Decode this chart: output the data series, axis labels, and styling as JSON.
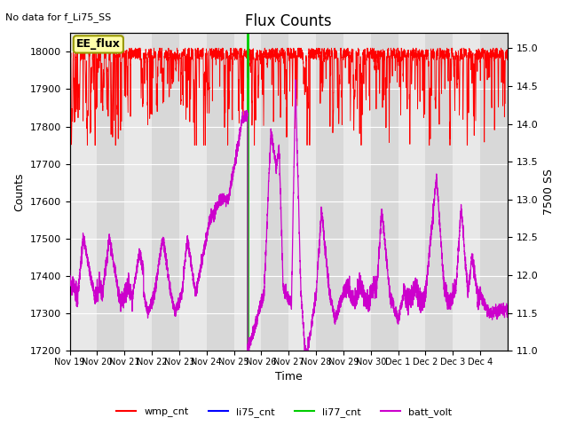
{
  "title": "Flux Counts",
  "no_data_text": "No data for f_Li75_SS",
  "xlabel": "Time",
  "ylabel_left": "Counts",
  "ylabel_right": "7500 SS",
  "annotation_box": "EE_flux",
  "ylim_left": [
    17200,
    18050
  ],
  "ylim_right": [
    11.0,
    15.2
  ],
  "yticks_left": [
    17200,
    17300,
    17400,
    17500,
    17600,
    17700,
    17800,
    17900,
    18000
  ],
  "yticks_right": [
    11.0,
    11.5,
    12.0,
    12.5,
    13.0,
    13.5,
    14.0,
    14.5,
    15.0
  ],
  "xtick_labels": [
    "Nov 19",
    "Nov 20",
    "Nov 21",
    "Nov 22",
    "Nov 23",
    "Nov 24",
    "Nov 25",
    "Nov 26",
    "Nov 27",
    "Nov 28",
    "Nov 29",
    "Nov 30",
    "Dec 1",
    "Dec 2",
    "Dec 3",
    "Dec 4"
  ],
  "wmp_color": "#FF0000",
  "li75_color": "#0000FF",
  "li77_color": "#00CC00",
  "batt_color": "#CC00CC",
  "vline_x": 6.5,
  "fig_bg": "#FFFFFF",
  "band_colors": [
    "#E8E8E8",
    "#D8D8D8"
  ],
  "grid_color": "#FFFFFF",
  "n_days": 16
}
